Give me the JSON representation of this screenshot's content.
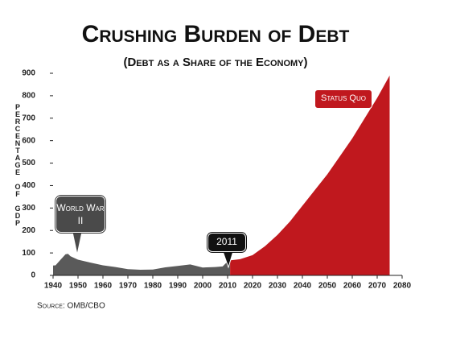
{
  "chart_data": {
    "type": "area",
    "title": "Crushing Burden of Debt",
    "subtitle": "(Debt as a Share of the Economy)",
    "y_label": "Percentage of GDP",
    "source": "Source: OMB/CBO",
    "annotations": [
      "World War II",
      "2011",
      "Status Quo"
    ],
    "series": [
      {
        "color": "#5a5a5a",
        "x": [
          1940,
          1941,
          1943,
          1945,
          1946,
          1947,
          1950,
          1955,
          1960,
          1965,
          1970,
          1975,
          1980,
          1985,
          1990,
          1995,
          2000,
          2005,
          2008,
          2010,
          2011
        ],
        "values": [
          44,
          45,
          70,
          94,
          96,
          85,
          70,
          57,
          45,
          37,
          28,
          25,
          26,
          36,
          42,
          49,
          35,
          37,
          40,
          62,
          67
        ]
      },
      {
        "color": "#c0181e",
        "x": [
          2011,
          2015,
          2020,
          2025,
          2030,
          2035,
          2040,
          2045,
          2050,
          2055,
          2060,
          2065,
          2070,
          2075
        ],
        "values": [
          67,
          72,
          90,
          130,
          180,
          240,
          310,
          380,
          450,
          530,
          610,
          700,
          790,
          890
        ]
      }
    ],
    "xlim": [
      1940,
      2080
    ],
    "xticks": [
      1940,
      1950,
      1960,
      1970,
      1980,
      1990,
      2000,
      2010,
      2020,
      2030,
      2040,
      2050,
      2060,
      2070,
      2080
    ],
    "ylim": [
      0,
      900
    ],
    "yticks": [
      0,
      100,
      200,
      300,
      400,
      500,
      600,
      700,
      800,
      900
    ]
  }
}
